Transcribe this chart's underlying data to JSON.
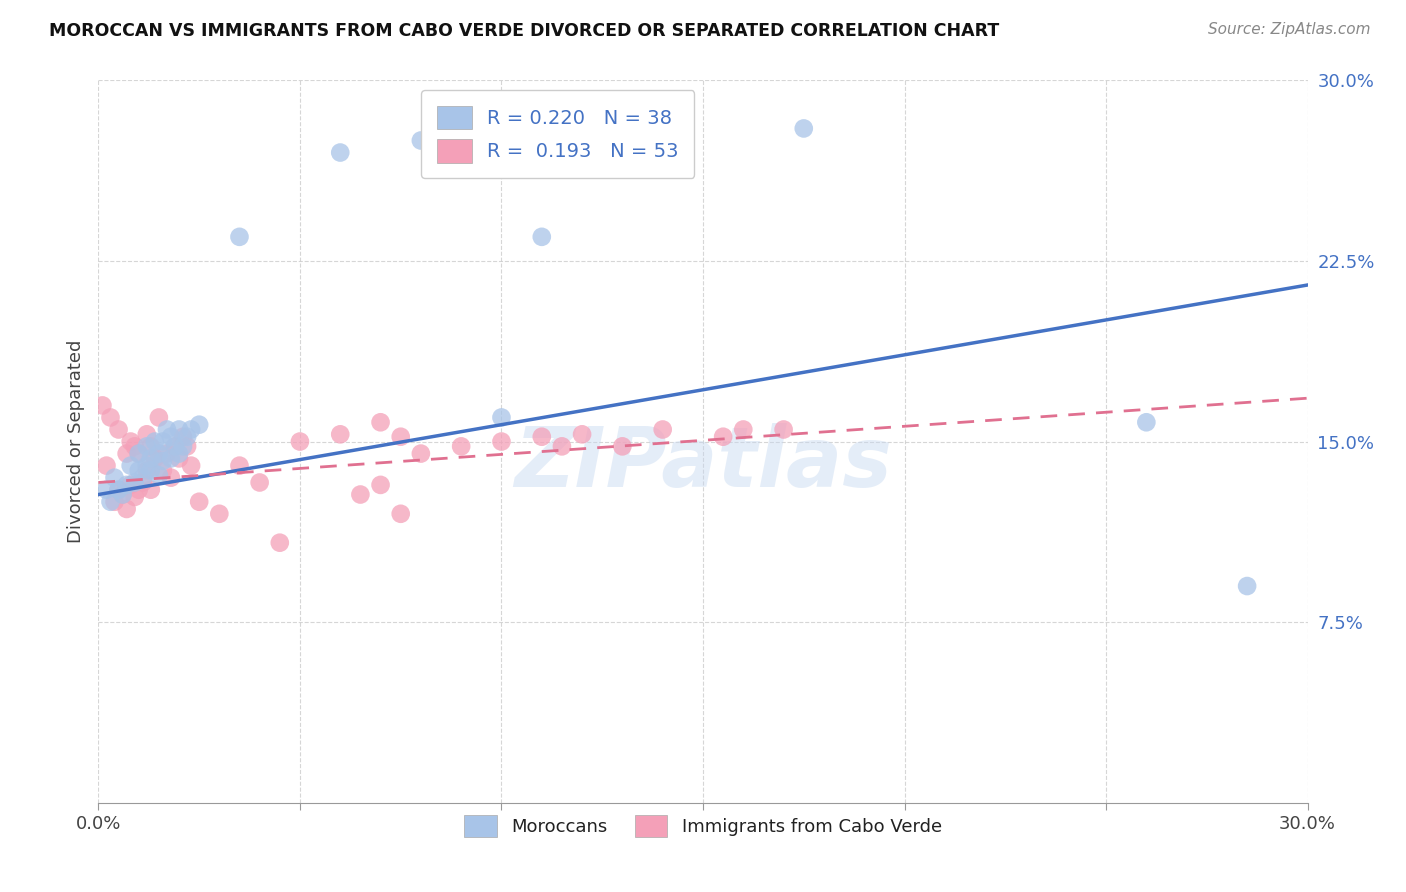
{
  "title": "MOROCCAN VS IMMIGRANTS FROM CABO VERDE DIVORCED OR SEPARATED CORRELATION CHART",
  "source": "Source: ZipAtlas.com",
  "ylabel": "Divorced or Separated",
  "xmin": 0.0,
  "xmax": 0.3,
  "ymin": 0.0,
  "ymax": 0.3,
  "yticks": [
    0.075,
    0.15,
    0.225,
    0.3
  ],
  "ytick_labels": [
    "7.5%",
    "15.0%",
    "22.5%",
    "30.0%"
  ],
  "color_moroccan": "#a8c4e8",
  "color_caboverde": "#f4a0b8",
  "color_moroccan_line": "#4472c4",
  "color_caboverde_line": "#e07090",
  "watermark": "ZIPatlas",
  "moroccan_x": [
    0.002,
    0.003,
    0.004,
    0.005,
    0.006,
    0.007,
    0.008,
    0.009,
    0.01,
    0.01,
    0.011,
    0.012,
    0.012,
    0.013,
    0.013,
    0.014,
    0.015,
    0.015,
    0.016,
    0.016,
    0.017,
    0.018,
    0.018,
    0.019,
    0.02,
    0.02,
    0.021,
    0.022,
    0.023,
    0.025,
    0.035,
    0.06,
    0.11,
    0.175,
    0.26,
    0.285,
    0.1,
    0.08
  ],
  "moroccan_y": [
    0.13,
    0.125,
    0.135,
    0.13,
    0.128,
    0.132,
    0.14,
    0.133,
    0.138,
    0.145,
    0.135,
    0.14,
    0.148,
    0.138,
    0.143,
    0.15,
    0.136,
    0.145,
    0.142,
    0.15,
    0.155,
    0.143,
    0.152,
    0.148,
    0.145,
    0.155,
    0.148,
    0.152,
    0.155,
    0.157,
    0.235,
    0.27,
    0.235,
    0.28,
    0.158,
    0.09,
    0.16,
    0.275
  ],
  "caboverde_x": [
    0.001,
    0.002,
    0.003,
    0.004,
    0.005,
    0.005,
    0.006,
    0.007,
    0.007,
    0.008,
    0.008,
    0.009,
    0.009,
    0.01,
    0.01,
    0.011,
    0.012,
    0.012,
    0.013,
    0.013,
    0.014,
    0.015,
    0.016,
    0.017,
    0.018,
    0.019,
    0.02,
    0.021,
    0.022,
    0.023,
    0.025,
    0.03,
    0.035,
    0.04,
    0.045,
    0.05,
    0.06,
    0.065,
    0.07,
    0.075,
    0.08,
    0.09,
    0.1,
    0.11,
    0.115,
    0.12,
    0.13,
    0.14,
    0.155,
    0.16,
    0.17,
    0.07,
    0.075
  ],
  "caboverde_y": [
    0.165,
    0.14,
    0.16,
    0.125,
    0.13,
    0.155,
    0.128,
    0.122,
    0.145,
    0.132,
    0.15,
    0.127,
    0.148,
    0.13,
    0.145,
    0.133,
    0.138,
    0.153,
    0.13,
    0.148,
    0.143,
    0.16,
    0.138,
    0.145,
    0.135,
    0.148,
    0.143,
    0.152,
    0.148,
    0.14,
    0.125,
    0.12,
    0.14,
    0.133,
    0.108,
    0.15,
    0.153,
    0.128,
    0.132,
    0.152,
    0.145,
    0.148,
    0.15,
    0.152,
    0.148,
    0.153,
    0.148,
    0.155,
    0.152,
    0.155,
    0.155,
    0.158,
    0.12
  ],
  "mor_line_x0": 0.0,
  "mor_line_x1": 0.3,
  "mor_line_y0": 0.128,
  "mor_line_y1": 0.215,
  "cv_line_x0": 0.0,
  "cv_line_x1": 0.3,
  "cv_line_y0": 0.133,
  "cv_line_y1": 0.168
}
